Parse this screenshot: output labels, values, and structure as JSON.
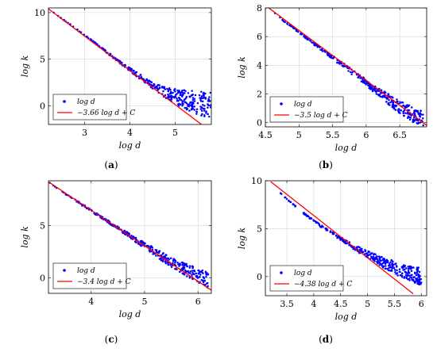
{
  "figure": {
    "panels": [
      {
        "label": "(a)",
        "bold": "a",
        "legend": [
          "log d",
          "−3.66 log d + C"
        ]
      },
      {
        "label": "(b)",
        "bold": "b",
        "legend": [
          "log d",
          "−3.5 log d + C"
        ]
      },
      {
        "label": "(c)",
        "bold": "c",
        "legend": [
          "log d",
          "−3.4 log d + C"
        ]
      },
      {
        "label": "(d)",
        "bold": "d",
        "legend": [
          "log d",
          "−4.38 log d + C"
        ]
      }
    ]
  },
  "colors": {
    "scatter": "#0000ff",
    "fit": "#ff0000"
  },
  "chart_data": [
    {
      "type": "scatter",
      "xlabel": "log d",
      "ylabel": "log k",
      "xlim": [
        2.2,
        5.8
      ],
      "ylim": [
        -2,
        10.5
      ],
      "xticks": [
        3,
        4,
        5
      ],
      "yticks": [
        0,
        5,
        10
      ],
      "grid": true,
      "legend_position": "bottom-left",
      "series": [
        {
          "name": "log d",
          "kind": "points",
          "x": [
            2.2,
            2.6,
            3.0,
            3.4,
            3.8,
            4.2,
            4.4,
            4.6,
            4.8,
            5.0,
            5.2,
            5.4,
            5.6,
            5.8
          ],
          "y": [
            10.4,
            9.0,
            7.6,
            6.1,
            4.6,
            3.2,
            2.5,
            1.9,
            1.4,
            1.0,
            0.7,
            0.4,
            0.2,
            0.1
          ],
          "spread": [
            0,
            0.05,
            0.05,
            0.1,
            0.15,
            0.25,
            0.3,
            0.4,
            0.6,
            0.8,
            1.0,
            1.2,
            1.3,
            1.4
          ]
        },
        {
          "name": "−3.66 log d + C",
          "kind": "line",
          "x": [
            2.2,
            5.8
          ],
          "y": [
            10.4,
            -2.8
          ]
        }
      ]
    },
    {
      "type": "scatter",
      "xlabel": "log d",
      "ylabel": "log k",
      "xlim": [
        4.5,
        6.9
      ],
      "ylim": [
        -0.3,
        8
      ],
      "xticks": [
        4.5,
        5,
        5.5,
        6,
        6.5
      ],
      "yticks": [
        0,
        2,
        4,
        6,
        8
      ],
      "grid": true,
      "legend_position": "bottom-left",
      "series": [
        {
          "name": "log d",
          "kind": "points",
          "x": [
            4.55,
            4.8,
            5.0,
            5.2,
            5.4,
            5.6,
            5.8,
            6.0,
            6.2,
            6.4,
            6.6,
            6.85
          ],
          "y": [
            8.0,
            7.0,
            6.3,
            5.6,
            4.9,
            4.2,
            3.5,
            2.8,
            2.1,
            1.4,
            0.8,
            0.2
          ],
          "spread": [
            0,
            0.05,
            0.05,
            0.1,
            0.1,
            0.15,
            0.2,
            0.25,
            0.3,
            0.4,
            0.5,
            0.6
          ]
        },
        {
          "name": "−3.5 log d + C",
          "kind": "line",
          "x": [
            4.55,
            6.9
          ],
          "y": [
            8.0,
            -0.2
          ]
        }
      ]
    },
    {
      "type": "scatter",
      "xlabel": "log d",
      "ylabel": "log k",
      "xlim": [
        3.2,
        6.25
      ],
      "ylim": [
        -1.5,
        9.3
      ],
      "xticks": [
        4,
        5,
        6
      ],
      "yticks": [
        0,
        5
      ],
      "grid": true,
      "legend_position": "bottom-left",
      "series": [
        {
          "name": "log d",
          "kind": "points",
          "x": [
            3.2,
            3.5,
            3.8,
            4.1,
            4.4,
            4.7,
            5.0,
            5.3,
            5.6,
            5.8,
            6.0,
            6.2
          ],
          "y": [
            9.2,
            8.1,
            7.1,
            6.1,
            5.1,
            4.1,
            3.1,
            2.1,
            1.2,
            0.7,
            0.2,
            -0.2
          ],
          "spread": [
            0,
            0.05,
            0.1,
            0.1,
            0.15,
            0.2,
            0.3,
            0.4,
            0.5,
            0.6,
            0.7,
            0.8
          ]
        },
        {
          "name": "−3.4 log d + C",
          "kind": "line",
          "x": [
            3.2,
            6.25
          ],
          "y": [
            9.2,
            -1.2
          ]
        }
      ]
    },
    {
      "type": "scatter",
      "xlabel": "log d",
      "ylabel": "log k",
      "xlim": [
        3.1,
        6.1
      ],
      "ylim": [
        -2,
        10
      ],
      "xticks": [
        3.5,
        4,
        4.5,
        5,
        5.5,
        6
      ],
      "yticks": [
        0,
        5,
        10
      ],
      "grid": true,
      "legend_position": "bottom-left",
      "series": [
        {
          "name": "log d",
          "kind": "points",
          "x": [
            3.2,
            3.4,
            3.6,
            3.8,
            4.0,
            4.2,
            4.4,
            4.6,
            4.8,
            5.0,
            5.2,
            5.4,
            5.6,
            5.8,
            6.0
          ],
          "y": [
            9.8,
            8.6,
            7.6,
            6.7,
            5.8,
            5.0,
            4.3,
            3.6,
            2.9,
            2.3,
            1.7,
            1.2,
            0.7,
            0.3,
            0.0
          ],
          "spread": [
            0,
            0.05,
            0.05,
            0.1,
            0.1,
            0.15,
            0.15,
            0.2,
            0.3,
            0.4,
            0.5,
            0.6,
            0.7,
            0.8,
            0.9
          ]
        },
        {
          "name": "−4.38 log d + C",
          "kind": "line",
          "x": [
            3.2,
            5.85
          ],
          "y": [
            9.9,
            -1.8
          ]
        }
      ]
    }
  ]
}
